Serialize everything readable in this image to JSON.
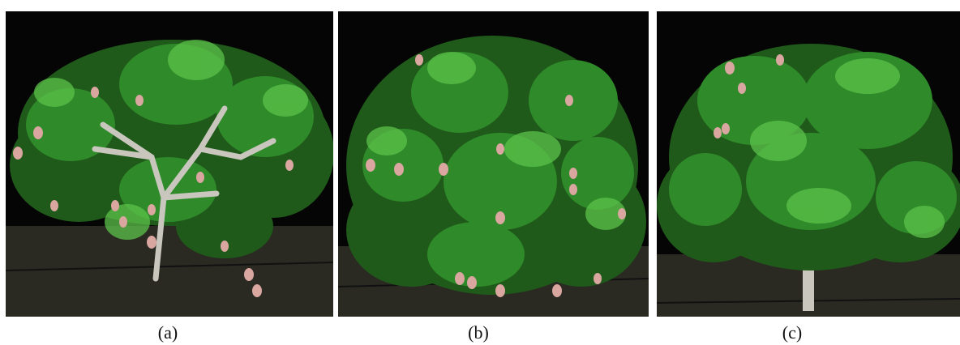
{
  "figure": {
    "panels": [
      {
        "caption": "(a)",
        "icon": "mango-tree-with-visible-fruit-icon"
      },
      {
        "caption": "(b)",
        "icon": "dense-mango-tree-with-fruit-icon"
      },
      {
        "caption": "(c)",
        "icon": "dense-mango-tree-few-fruit-icon"
      }
    ],
    "colors": {
      "background": "#050505",
      "foliage_dark": "#1f5a1a",
      "foliage_mid": "#2f8a2a",
      "foliage_light": "#5cc24a",
      "branch": "#c9c7bd",
      "fruit": "#d9a6a0",
      "ground": "#2a2a22"
    }
  }
}
